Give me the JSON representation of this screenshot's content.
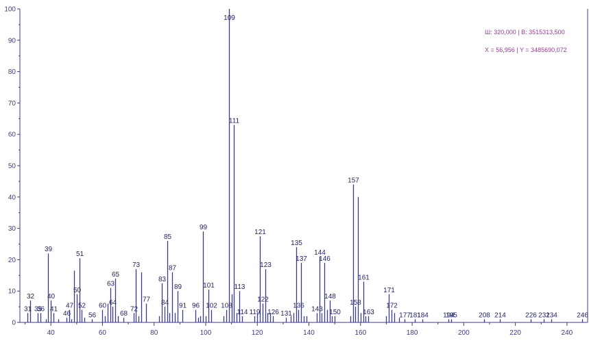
{
  "chart_data": {
    "type": "bar",
    "title": "",
    "xlabel": "",
    "ylabel": "",
    "xlim": [
      28,
      248
    ],
    "ylim": [
      0,
      100
    ],
    "x_ticks": [
      40,
      60,
      80,
      100,
      120,
      140,
      160,
      180,
      200,
      220,
      240
    ],
    "y_ticks": [
      0,
      10,
      20,
      30,
      40,
      50,
      60,
      70,
      80,
      90,
      100
    ],
    "grid": false,
    "peaks": [
      {
        "x": 31,
        "y": 3,
        "label": "31"
      },
      {
        "x": 32,
        "y": 7,
        "label": "32"
      },
      {
        "x": 35,
        "y": 3,
        "label": "35"
      },
      {
        "x": 36,
        "y": 3,
        "label": "36"
      },
      {
        "x": 38,
        "y": 1
      },
      {
        "x": 39,
        "y": 22,
        "label": "39"
      },
      {
        "x": 40,
        "y": 7,
        "label": "40"
      },
      {
        "x": 41,
        "y": 3,
        "label": "41"
      },
      {
        "x": 43,
        "y": 1
      },
      {
        "x": 46,
        "y": 1.5,
        "label": "46"
      },
      {
        "x": 47,
        "y": 4,
        "label": "47"
      },
      {
        "x": 48,
        "y": 1
      },
      {
        "x": 49,
        "y": 16.5
      },
      {
        "x": 50,
        "y": 9,
        "label": "50"
      },
      {
        "x": 51,
        "y": 20.5,
        "label": "51"
      },
      {
        "x": 52,
        "y": 4,
        "label": "52"
      },
      {
        "x": 53,
        "y": 1.5
      },
      {
        "x": 56,
        "y": 1,
        "label": "56"
      },
      {
        "x": 60,
        "y": 4,
        "label": "60"
      },
      {
        "x": 61,
        "y": 2
      },
      {
        "x": 62,
        "y": 6
      },
      {
        "x": 63,
        "y": 11,
        "label": "63"
      },
      {
        "x": 64,
        "y": 5,
        "label": "64"
      },
      {
        "x": 65,
        "y": 14,
        "label": "65"
      },
      {
        "x": 66,
        "y": 2
      },
      {
        "x": 68,
        "y": 1.5,
        "label": "68"
      },
      {
        "x": 72,
        "y": 3,
        "label": "72"
      },
      {
        "x": 73,
        "y": 17,
        "label": "73"
      },
      {
        "x": 74,
        "y": 2
      },
      {
        "x": 75,
        "y": 16
      },
      {
        "x": 77,
        "y": 6,
        "label": "77"
      },
      {
        "x": 82,
        "y": 2
      },
      {
        "x": 83,
        "y": 12.5,
        "label": "83"
      },
      {
        "x": 84,
        "y": 5,
        "label": "84"
      },
      {
        "x": 85,
        "y": 26,
        "label": "85"
      },
      {
        "x": 86,
        "y": 3
      },
      {
        "x": 87,
        "y": 16,
        "label": "87"
      },
      {
        "x": 88,
        "y": 3
      },
      {
        "x": 89,
        "y": 10,
        "label": "89"
      },
      {
        "x": 91,
        "y": 4,
        "label": "91"
      },
      {
        "x": 96,
        "y": 4,
        "label": "96"
      },
      {
        "x": 97,
        "y": 1.5
      },
      {
        "x": 98,
        "y": 2
      },
      {
        "x": 99,
        "y": 29,
        "label": "99"
      },
      {
        "x": 100,
        "y": 2
      },
      {
        "x": 101,
        "y": 10.5,
        "label": "101"
      },
      {
        "x": 102,
        "y": 4,
        "label": "102"
      },
      {
        "x": 107,
        "y": 2
      },
      {
        "x": 108,
        "y": 4,
        "label": "108"
      },
      {
        "x": 109,
        "y": 100,
        "label": "109"
      },
      {
        "x": 110,
        "y": 9
      },
      {
        "x": 111,
        "y": 63,
        "label": "111"
      },
      {
        "x": 112,
        "y": 3
      },
      {
        "x": 113,
        "y": 10,
        "label": "113"
      },
      {
        "x": 114,
        "y": 2,
        "label": "114"
      },
      {
        "x": 119,
        "y": 2,
        "label": "119"
      },
      {
        "x": 120,
        "y": 3
      },
      {
        "x": 121,
        "y": 27.5,
        "label": "121"
      },
      {
        "x": 122,
        "y": 6,
        "label": "122"
      },
      {
        "x": 123,
        "y": 17,
        "label": "123"
      },
      {
        "x": 124,
        "y": 3
      },
      {
        "x": 125,
        "y": 3
      },
      {
        "x": 126,
        "y": 2,
        "label": "126"
      },
      {
        "x": 131,
        "y": 1.5,
        "label": "131"
      },
      {
        "x": 133,
        "y": 2
      },
      {
        "x": 134,
        "y": 3
      },
      {
        "x": 135,
        "y": 24,
        "label": "135"
      },
      {
        "x": 136,
        "y": 4,
        "label": "136"
      },
      {
        "x": 137,
        "y": 19,
        "label": "137"
      },
      {
        "x": 138,
        "y": 2
      },
      {
        "x": 139,
        "y": 2
      },
      {
        "x": 143,
        "y": 3,
        "label": "143"
      },
      {
        "x": 144,
        "y": 21,
        "label": "144"
      },
      {
        "x": 145,
        "y": 3
      },
      {
        "x": 146,
        "y": 19,
        "label": "146"
      },
      {
        "x": 147,
        "y": 4
      },
      {
        "x": 148,
        "y": 7,
        "label": "148"
      },
      {
        "x": 149,
        "y": 2
      },
      {
        "x": 150,
        "y": 2,
        "label": "150"
      },
      {
        "x": 156,
        "y": 2
      },
      {
        "x": 157,
        "y": 44,
        "label": "157"
      },
      {
        "x": 158,
        "y": 5,
        "label": "158"
      },
      {
        "x": 159,
        "y": 40
      },
      {
        "x": 160,
        "y": 3
      },
      {
        "x": 161,
        "y": 13,
        "label": "161"
      },
      {
        "x": 162,
        "y": 2
      },
      {
        "x": 163,
        "y": 2,
        "label": "163"
      },
      {
        "x": 170,
        "y": 2
      },
      {
        "x": 171,
        "y": 9,
        "label": "171"
      },
      {
        "x": 172,
        "y": 4,
        "label": "172"
      },
      {
        "x": 173,
        "y": 3
      },
      {
        "x": 175,
        "y": 1.5
      },
      {
        "x": 177,
        "y": 1,
        "label": "177"
      },
      {
        "x": 181,
        "y": 1,
        "label": "181"
      },
      {
        "x": 184,
        "y": 1,
        "label": "184"
      },
      {
        "x": 194,
        "y": 1,
        "label": "194"
      },
      {
        "x": 195,
        "y": 1,
        "label": "195"
      },
      {
        "x": 208,
        "y": 1,
        "label": "208"
      },
      {
        "x": 214,
        "y": 1,
        "label": "214"
      },
      {
        "x": 226,
        "y": 1,
        "label": "226"
      },
      {
        "x": 231,
        "y": 1,
        "label": "231"
      },
      {
        "x": 234,
        "y": 1,
        "label": "234"
      },
      {
        "x": 246,
        "y": 1,
        "label": "246"
      }
    ],
    "annotations": [
      "Ш: 320,000  | В: 3515313,500",
      "X = 56,956  | Y = 3485690,072"
    ]
  },
  "colors": {
    "axis": "#3a3a8c",
    "bar": "#3a3a8c",
    "label": "#22226e",
    "readout": "#9a3a9a"
  }
}
